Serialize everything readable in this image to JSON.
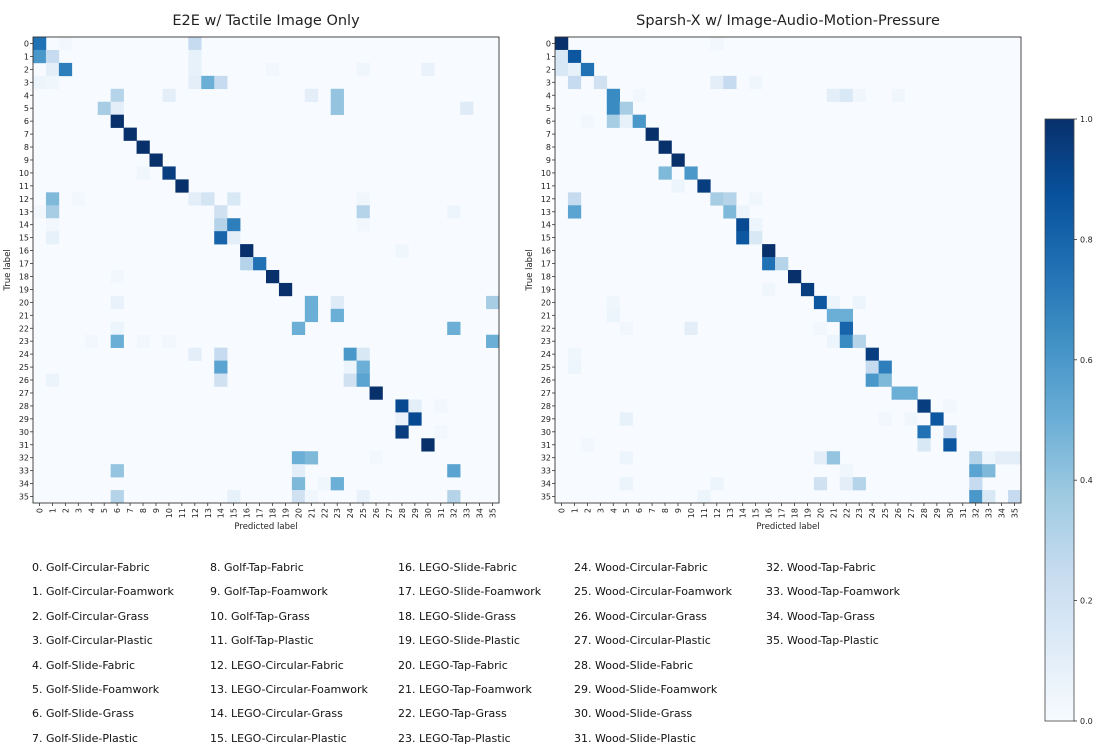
{
  "chart_data": [
    {
      "type": "heatmap",
      "title": "E2E w/ Tactile Image Only",
      "xlabel": "Predicted label",
      "ylabel": "True label",
      "categories": [
        "0",
        "1",
        "2",
        "3",
        "4",
        "5",
        "6",
        "7",
        "8",
        "9",
        "10",
        "11",
        "12",
        "13",
        "14",
        "15",
        "16",
        "17",
        "18",
        "19",
        "20",
        "21",
        "22",
        "23",
        "24",
        "25",
        "26",
        "27",
        "28",
        "29",
        "30",
        "31",
        "32",
        "33",
        "34",
        "35"
      ],
      "colormap": "Blues",
      "vrange": [
        0,
        1
      ],
      "cells_format": "[true_row, predicted_col, value]",
      "cells": [
        [
          0,
          0,
          0.75
        ],
        [
          0,
          2,
          0.03
        ],
        [
          0,
          12,
          0.25
        ],
        [
          1,
          0,
          0.6
        ],
        [
          1,
          1,
          0.25
        ],
        [
          1,
          12,
          0.08
        ],
        [
          2,
          1,
          0.1
        ],
        [
          2,
          2,
          0.7
        ],
        [
          2,
          12,
          0.08
        ],
        [
          2,
          18,
          0.03
        ],
        [
          2,
          25,
          0.04
        ],
        [
          2,
          30,
          0.07
        ],
        [
          3,
          0,
          0.05
        ],
        [
          3,
          1,
          0.04
        ],
        [
          3,
          12,
          0.1
        ],
        [
          3,
          13,
          0.5
        ],
        [
          3,
          14,
          0.25
        ],
        [
          4,
          6,
          0.3
        ],
        [
          4,
          10,
          0.1
        ],
        [
          4,
          21,
          0.1
        ],
        [
          4,
          23,
          0.4
        ],
        [
          5,
          5,
          0.35
        ],
        [
          5,
          6,
          0.1
        ],
        [
          5,
          23,
          0.4
        ],
        [
          5,
          33,
          0.12
        ],
        [
          6,
          6,
          1.0
        ],
        [
          7,
          7,
          1.0
        ],
        [
          8,
          8,
          1.0
        ],
        [
          9,
          9,
          1.0
        ],
        [
          10,
          8,
          0.04
        ],
        [
          10,
          10,
          0.95
        ],
        [
          11,
          11,
          1.0
        ],
        [
          12,
          1,
          0.45
        ],
        [
          12,
          3,
          0.03
        ],
        [
          12,
          12,
          0.1
        ],
        [
          12,
          13,
          0.18
        ],
        [
          12,
          15,
          0.15
        ],
        [
          12,
          25,
          0.04
        ],
        [
          13,
          0,
          0.03
        ],
        [
          13,
          1,
          0.35
        ],
        [
          13,
          14,
          0.2
        ],
        [
          13,
          25,
          0.3
        ],
        [
          13,
          32,
          0.05
        ],
        [
          14,
          1,
          0.03
        ],
        [
          14,
          14,
          0.3
        ],
        [
          14,
          15,
          0.7
        ],
        [
          14,
          25,
          0.03
        ],
        [
          15,
          1,
          0.08
        ],
        [
          15,
          14,
          0.8
        ],
        [
          15,
          15,
          0.1
        ],
        [
          16,
          16,
          1.0
        ],
        [
          16,
          28,
          0.04
        ],
        [
          17,
          16,
          0.3
        ],
        [
          17,
          17,
          0.75
        ],
        [
          18,
          6,
          0.03
        ],
        [
          18,
          18,
          1.0
        ],
        [
          19,
          19,
          1.0
        ],
        [
          20,
          6,
          0.07
        ],
        [
          20,
          21,
          0.5
        ],
        [
          20,
          23,
          0.12
        ],
        [
          20,
          35,
          0.35
        ],
        [
          21,
          21,
          0.5
        ],
        [
          21,
          23,
          0.5
        ],
        [
          22,
          6,
          0.05
        ],
        [
          22,
          20,
          0.5
        ],
        [
          22,
          32,
          0.5
        ],
        [
          23,
          4,
          0.03
        ],
        [
          23,
          6,
          0.5
        ],
        [
          23,
          8,
          0.03
        ],
        [
          23,
          10,
          0.03
        ],
        [
          23,
          35,
          0.5
        ],
        [
          24,
          12,
          0.1
        ],
        [
          24,
          14,
          0.25
        ],
        [
          24,
          24,
          0.6
        ],
        [
          24,
          25,
          0.15
        ],
        [
          25,
          14,
          0.55
        ],
        [
          25,
          24,
          0.05
        ],
        [
          25,
          25,
          0.5
        ],
        [
          26,
          1,
          0.06
        ],
        [
          26,
          14,
          0.2
        ],
        [
          26,
          24,
          0.2
        ],
        [
          26,
          25,
          0.55
        ],
        [
          27,
          26,
          1.0
        ],
        [
          28,
          28,
          0.9
        ],
        [
          28,
          29,
          0.1
        ],
        [
          28,
          31,
          0.03
        ],
        [
          29,
          28,
          0.07
        ],
        [
          29,
          29,
          0.9
        ],
        [
          30,
          28,
          0.95
        ],
        [
          30,
          31,
          0.03
        ],
        [
          31,
          30,
          1.0
        ],
        [
          32,
          20,
          0.5
        ],
        [
          32,
          21,
          0.45
        ],
        [
          32,
          26,
          0.03
        ],
        [
          33,
          6,
          0.4
        ],
        [
          33,
          20,
          0.1
        ],
        [
          33,
          32,
          0.55
        ],
        [
          34,
          20,
          0.45
        ],
        [
          34,
          22,
          0.04
        ],
        [
          34,
          23,
          0.5
        ],
        [
          35,
          6,
          0.3
        ],
        [
          35,
          15,
          0.08
        ],
        [
          35,
          20,
          0.2
        ],
        [
          35,
          21,
          0.04
        ],
        [
          35,
          25,
          0.07
        ],
        [
          35,
          32,
          0.3
        ]
      ]
    },
    {
      "type": "heatmap",
      "title": "Sparsh-X w/ Image-Audio-Motion-Pressure",
      "xlabel": "Predicted label",
      "ylabel": "True label",
      "categories": [
        "0",
        "1",
        "2",
        "3",
        "4",
        "5",
        "6",
        "7",
        "8",
        "9",
        "10",
        "11",
        "12",
        "13",
        "14",
        "15",
        "16",
        "17",
        "18",
        "19",
        "20",
        "21",
        "22",
        "23",
        "24",
        "25",
        "26",
        "27",
        "28",
        "29",
        "30",
        "31",
        "32",
        "33",
        "34",
        "35"
      ],
      "colormap": "Blues",
      "vrange": [
        0,
        1
      ],
      "cells_format": "[true_row, predicted_col, value]",
      "cells": [
        [
          0,
          0,
          1.0
        ],
        [
          0,
          12,
          0.03
        ],
        [
          1,
          0,
          0.15
        ],
        [
          1,
          1,
          0.85
        ],
        [
          2,
          0,
          0.15
        ],
        [
          2,
          1,
          0.08
        ],
        [
          2,
          2,
          0.75
        ],
        [
          3,
          1,
          0.25
        ],
        [
          3,
          3,
          0.2
        ],
        [
          3,
          12,
          0.1
        ],
        [
          3,
          13,
          0.25
        ],
        [
          3,
          15,
          0.04
        ],
        [
          4,
          4,
          0.65
        ],
        [
          4,
          6,
          0.03
        ],
        [
          4,
          21,
          0.1
        ],
        [
          4,
          22,
          0.15
        ],
        [
          4,
          23,
          0.04
        ],
        [
          4,
          26,
          0.04
        ],
        [
          5,
          4,
          0.65
        ],
        [
          5,
          5,
          0.35
        ],
        [
          6,
          2,
          0.03
        ],
        [
          6,
          4,
          0.35
        ],
        [
          6,
          5,
          0.08
        ],
        [
          6,
          6,
          0.6
        ],
        [
          7,
          7,
          1.0
        ],
        [
          8,
          8,
          1.0
        ],
        [
          9,
          9,
          1.0
        ],
        [
          10,
          8,
          0.45
        ],
        [
          10,
          10,
          0.6
        ],
        [
          11,
          9,
          0.05
        ],
        [
          11,
          11,
          0.95
        ],
        [
          12,
          1,
          0.25
        ],
        [
          12,
          12,
          0.35
        ],
        [
          12,
          13,
          0.3
        ],
        [
          12,
          15,
          0.04
        ],
        [
          13,
          1,
          0.55
        ],
        [
          13,
          13,
          0.45
        ],
        [
          13,
          14,
          0.05
        ],
        [
          14,
          14,
          0.9
        ],
        [
          14,
          15,
          0.05
        ],
        [
          15,
          14,
          0.85
        ],
        [
          15,
          15,
          0.15
        ],
        [
          16,
          16,
          1.0
        ],
        [
          17,
          16,
          0.75
        ],
        [
          17,
          17,
          0.3
        ],
        [
          18,
          18,
          1.0
        ],
        [
          19,
          16,
          0.04
        ],
        [
          19,
          19,
          0.95
        ],
        [
          20,
          4,
          0.04
        ],
        [
          20,
          20,
          0.85
        ],
        [
          20,
          21,
          0.05
        ],
        [
          20,
          23,
          0.05
        ],
        [
          21,
          4,
          0.05
        ],
        [
          21,
          21,
          0.5
        ],
        [
          21,
          22,
          0.5
        ],
        [
          22,
          5,
          0.03
        ],
        [
          22,
          10,
          0.1
        ],
        [
          22,
          20,
          0.03
        ],
        [
          22,
          22,
          0.8
        ],
        [
          23,
          21,
          0.05
        ],
        [
          23,
          22,
          0.65
        ],
        [
          23,
          23,
          0.3
        ],
        [
          24,
          1,
          0.04
        ],
        [
          24,
          24,
          0.95
        ],
        [
          25,
          1,
          0.05
        ],
        [
          25,
          24,
          0.25
        ],
        [
          25,
          25,
          0.7
        ],
        [
          26,
          24,
          0.6
        ],
        [
          26,
          25,
          0.45
        ],
        [
          27,
          26,
          0.5
        ],
        [
          27,
          27,
          0.5
        ],
        [
          28,
          28,
          0.95
        ],
        [
          28,
          30,
          0.03
        ],
        [
          29,
          5,
          0.08
        ],
        [
          29,
          25,
          0.03
        ],
        [
          29,
          27,
          0.04
        ],
        [
          29,
          29,
          0.85
        ],
        [
          30,
          28,
          0.75
        ],
        [
          30,
          30,
          0.25
        ],
        [
          31,
          2,
          0.03
        ],
        [
          31,
          28,
          0.15
        ],
        [
          31,
          30,
          0.85
        ],
        [
          32,
          5,
          0.05
        ],
        [
          32,
          20,
          0.1
        ],
        [
          32,
          21,
          0.4
        ],
        [
          32,
          32,
          0.3
        ],
        [
          32,
          33,
          0.05
        ],
        [
          32,
          34,
          0.1
        ],
        [
          32,
          35,
          0.1
        ],
        [
          33,
          22,
          0.04
        ],
        [
          33,
          32,
          0.55
        ],
        [
          33,
          33,
          0.45
        ],
        [
          34,
          5,
          0.06
        ],
        [
          34,
          12,
          0.05
        ],
        [
          34,
          20,
          0.2
        ],
        [
          34,
          22,
          0.1
        ],
        [
          34,
          23,
          0.3
        ],
        [
          34,
          32,
          0.25
        ],
        [
          35,
          11,
          0.05
        ],
        [
          35,
          32,
          0.6
        ],
        [
          35,
          33,
          0.15
        ],
        [
          35,
          35,
          0.25
        ]
      ]
    }
  ],
  "colorbar": {
    "range": [
      0,
      1
    ],
    "ticks": [
      "0.0",
      "0.2",
      "0.4",
      "0.6",
      "0.8",
      "1.0"
    ]
  },
  "legend": [
    "0.  Golf-Circular-Fabric",
    "1.  Golf-Circular-Foamwork",
    "2.  Golf-Circular-Grass",
    "3.  Golf-Circular-Plastic",
    "4.  Golf-Slide-Fabric",
    "5.  Golf-Slide-Foamwork",
    "6.  Golf-Slide-Grass",
    "7.  Golf-Slide-Plastic",
    "8.  Golf-Tap-Fabric",
    "9.  Golf-Tap-Foamwork",
    "10.  Golf-Tap-Grass",
    "11.  Golf-Tap-Plastic",
    "12.  LEGO-Circular-Fabric",
    "13.  LEGO-Circular-Foamwork",
    "14.  LEGO-Circular-Grass",
    "15.  LEGO-Circular-Plastic",
    "16.  LEGO-Slide-Fabric",
    "17.  LEGO-Slide-Foamwork",
    "18.  LEGO-Slide-Grass",
    "19.  LEGO-Slide-Plastic",
    "20.  LEGO-Tap-Fabric",
    "21.  LEGO-Tap-Foamwork",
    "22.  LEGO-Tap-Grass",
    "23.  LEGO-Tap-Plastic",
    "24.  Wood-Circular-Fabric",
    "25.  Wood-Circular-Foamwork",
    "26.  Wood-Circular-Grass",
    "27.  Wood-Circular-Plastic",
    "28.  Wood-Slide-Fabric",
    "29.  Wood-Slide-Foamwork",
    "30.  Wood-Slide-Grass",
    "31.  Wood-Slide-Plastic",
    "32.  Wood-Tap-Fabric",
    "33.  Wood-Tap-Foamwork",
    "34.  Wood-Tap-Grass",
    "35.  Wood-Tap-Plastic"
  ],
  "colors": [
    "#f7fbff",
    "#deebf7",
    "#c6dbef",
    "#9ecae1",
    "#6baed6",
    "#4292c6",
    "#2171b5",
    "#08519c",
    "#08306b"
  ]
}
